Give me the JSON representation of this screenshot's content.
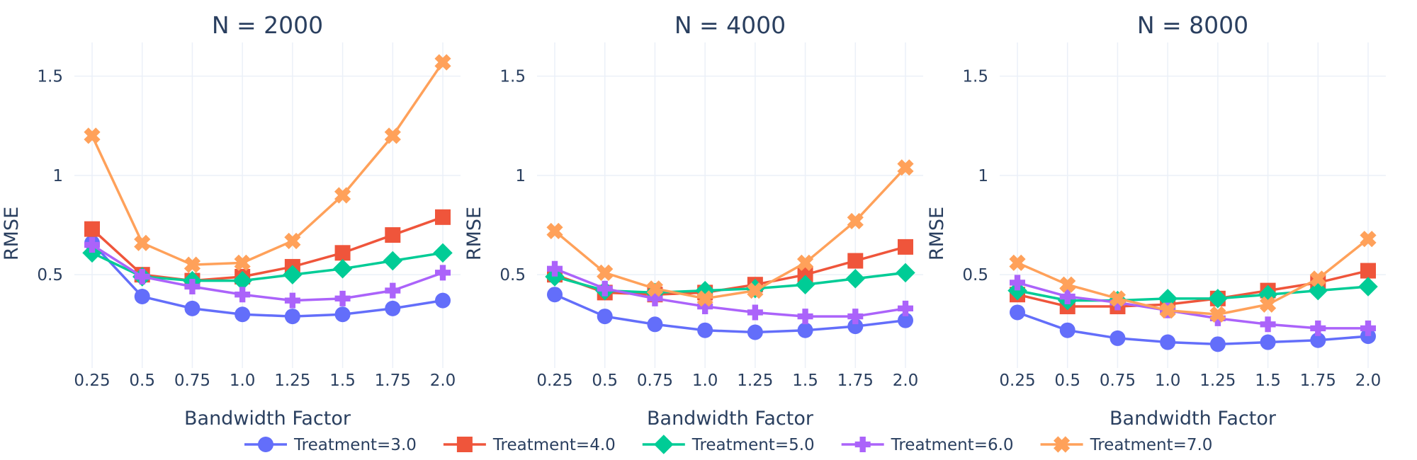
{
  "chart_data": {
    "type": "line",
    "x": [
      0.25,
      0.5,
      0.75,
      1.0,
      1.25,
      1.5,
      1.75,
      2.0
    ],
    "x_tick_labels": [
      "0.25",
      "0.5",
      "0.75",
      "1.0",
      "1.25",
      "1.5",
      "1.75",
      "2.0"
    ],
    "y_ticks": [
      0.5,
      1,
      1.5
    ],
    "y_tick_labels": [
      "0.5",
      "1",
      "1.5"
    ],
    "ylim": [
      0.03,
      1.67
    ],
    "xlabel": "Bandwidth Factor",
    "ylabel": "RMSE",
    "grid": true,
    "legend_position": "bottom",
    "legend": [
      {
        "name": "Treatment=3.0",
        "color": "#636efa",
        "marker": "circle"
      },
      {
        "name": "Treatment=4.0",
        "color": "#ef553b",
        "marker": "square"
      },
      {
        "name": "Treatment=5.0",
        "color": "#00cc96",
        "marker": "diamond"
      },
      {
        "name": "Treatment=6.0",
        "color": "#ab63fa",
        "marker": "cross"
      },
      {
        "name": "Treatment=7.0",
        "color": "#ffa15a",
        "marker": "x"
      }
    ],
    "panels": [
      {
        "title": "N = 2000",
        "series": [
          {
            "name": "Treatment=3.0",
            "values": [
              0.66,
              0.39,
              0.33,
              0.3,
              0.29,
              0.3,
              0.33,
              0.37
            ]
          },
          {
            "name": "Treatment=4.0",
            "values": [
              0.73,
              0.5,
              0.47,
              0.49,
              0.54,
              0.61,
              0.7,
              0.79
            ]
          },
          {
            "name": "Treatment=5.0",
            "values": [
              0.61,
              0.49,
              0.47,
              0.47,
              0.5,
              0.53,
              0.57,
              0.61
            ]
          },
          {
            "name": "Treatment=6.0",
            "values": [
              0.65,
              0.49,
              0.44,
              0.4,
              0.37,
              0.38,
              0.42,
              0.51
            ]
          },
          {
            "name": "Treatment=7.0",
            "values": [
              1.2,
              0.66,
              0.55,
              0.56,
              0.67,
              0.9,
              1.2,
              1.57
            ]
          }
        ]
      },
      {
        "title": "N = 4000",
        "series": [
          {
            "name": "Treatment=3.0",
            "values": [
              0.4,
              0.29,
              0.25,
              0.22,
              0.21,
              0.22,
              0.24,
              0.27
            ]
          },
          {
            "name": "Treatment=4.0",
            "values": [
              0.5,
              0.41,
              0.4,
              0.41,
              0.45,
              0.5,
              0.57,
              0.64
            ]
          },
          {
            "name": "Treatment=5.0",
            "values": [
              0.49,
              0.42,
              0.41,
              0.42,
              0.43,
              0.45,
              0.48,
              0.51
            ]
          },
          {
            "name": "Treatment=6.0",
            "values": [
              0.53,
              0.43,
              0.38,
              0.34,
              0.31,
              0.29,
              0.29,
              0.33
            ]
          },
          {
            "name": "Treatment=7.0",
            "values": [
              0.72,
              0.51,
              0.43,
              0.38,
              0.42,
              0.56,
              0.77,
              1.04
            ]
          }
        ]
      },
      {
        "title": "N = 8000",
        "series": [
          {
            "name": "Treatment=3.0",
            "values": [
              0.31,
              0.22,
              0.18,
              0.16,
              0.15,
              0.16,
              0.17,
              0.19
            ]
          },
          {
            "name": "Treatment=4.0",
            "values": [
              0.4,
              0.34,
              0.34,
              0.35,
              0.38,
              0.42,
              0.46,
              0.52
            ]
          },
          {
            "name": "Treatment=5.0",
            "values": [
              0.42,
              0.37,
              0.37,
              0.38,
              0.38,
              0.4,
              0.42,
              0.44
            ]
          },
          {
            "name": "Treatment=6.0",
            "values": [
              0.46,
              0.39,
              0.36,
              0.32,
              0.28,
              0.25,
              0.23,
              0.23
            ]
          },
          {
            "name": "Treatment=7.0",
            "values": [
              0.56,
              0.45,
              0.38,
              0.32,
              0.3,
              0.35,
              0.48,
              0.68
            ]
          }
        ]
      }
    ]
  }
}
